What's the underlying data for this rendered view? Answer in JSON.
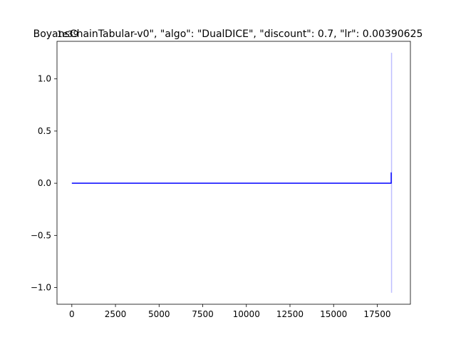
{
  "chart_data": {
    "type": "line",
    "title": "BoyansChainTabular-v0\", \"algo\": \"DualDICE\", \"discount\": 0.7, \"lr\": 0.00390625",
    "xlabel": "",
    "ylabel": "",
    "y_offset_label": "1e39",
    "xlim": [
      -850,
      19400
    ],
    "ylim": [
      -1.16,
      1.36
    ],
    "xticks": [
      0,
      2500,
      5000,
      7500,
      10000,
      12500,
      15000,
      17500
    ],
    "yticks": [
      -1.0,
      -0.5,
      0.0,
      0.5,
      1.0
    ],
    "grid": false,
    "series": [
      {
        "color": "#0000ff",
        "opacity": 1.0,
        "points": [
          [
            0,
            0.0
          ],
          [
            18300,
            0.0
          ],
          [
            18300,
            0.1
          ],
          [
            18320,
            0.1
          ]
        ]
      },
      {
        "color": "#0000ff",
        "opacity": 0.25,
        "points": [
          [
            18320,
            1.25
          ],
          [
            18320,
            -1.05
          ]
        ]
      }
    ]
  }
}
